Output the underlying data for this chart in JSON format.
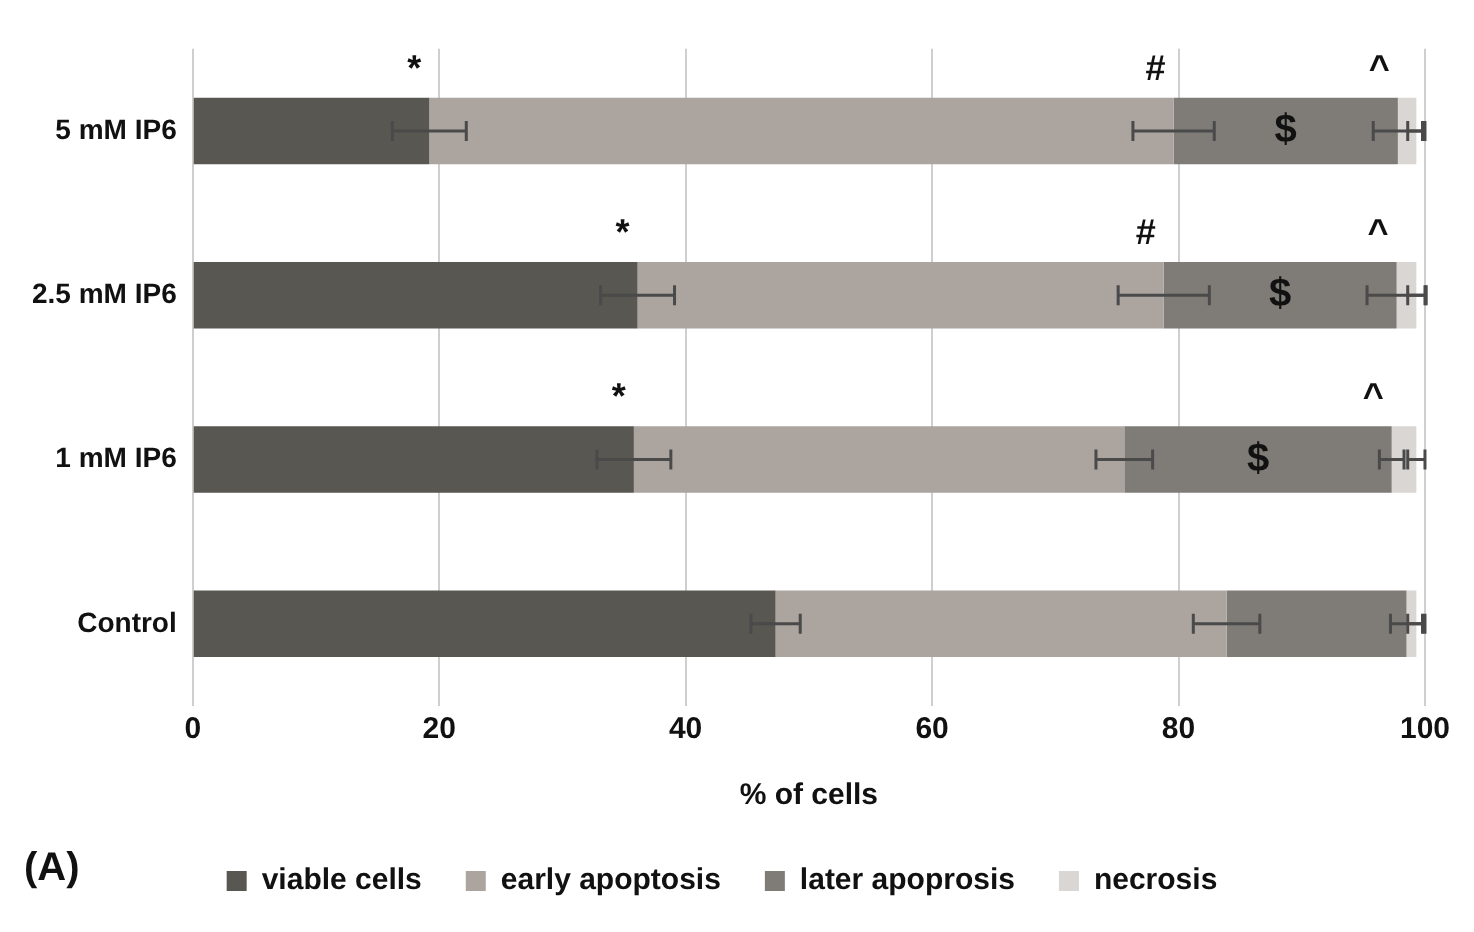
{
  "chart_data": {
    "type": "bar",
    "orientation": "horizontal",
    "stacked": true,
    "xlabel": "% of cells",
    "categories": [
      "5 mM IP6",
      "2.5 mM IP6",
      "1 mM IP6",
      "Control"
    ],
    "series": [
      {
        "name": "viable cells",
        "color": "#595751",
        "values": [
          19.2,
          36.1,
          35.8,
          47.3
        ],
        "errors": [
          3,
          3,
          3,
          2
        ]
      },
      {
        "name": "early apoptosis",
        "color": "#aba49f",
        "values": [
          60.4,
          42.7,
          39.8,
          36.6
        ],
        "errors": [
          3.3,
          3.7,
          2.3,
          2.7
        ]
      },
      {
        "name": "later apoprosis",
        "color": "#7f7c78",
        "values": [
          18.2,
          18.9,
          21.7,
          14.6
        ],
        "errors": [
          2,
          2.4,
          1,
          1.3
        ],
        "value_labels": [
          "$",
          "$",
          "$",
          null
        ]
      },
      {
        "name": "necrosis",
        "color": "#d9d6d3",
        "values": [
          1.5,
          1.6,
          2.0,
          0.8
        ],
        "errors": [
          0.7,
          0.7,
          0.7,
          0.7
        ]
      }
    ],
    "xlim": [
      0,
      100
    ],
    "xticks": [
      0,
      20,
      40,
      60,
      80,
      100
    ],
    "grid": "x",
    "legend": "bottom",
    "annotations": [
      {
        "text": "*",
        "x": 19.2,
        "y": "5 mM IP6"
      },
      {
        "text": "#",
        "x": 79.6,
        "y": "5 mM IP6"
      },
      {
        "text": "^",
        "x": 97.8,
        "y": "5 mM IP6"
      },
      {
        "text": "*",
        "x": 36.1,
        "y": "2.5 mM IP6"
      },
      {
        "text": "#",
        "x": 78.8,
        "y": "2.5 mM IP6"
      },
      {
        "text": "^",
        "x": 97.7,
        "y": "2.5 mM IP6"
      },
      {
        "text": "*",
        "x": 35.8,
        "y": "1 mM IP6"
      },
      {
        "text": "^",
        "x": 97.3,
        "y": "1 mM IP6"
      },
      "(A)"
    ]
  }
}
